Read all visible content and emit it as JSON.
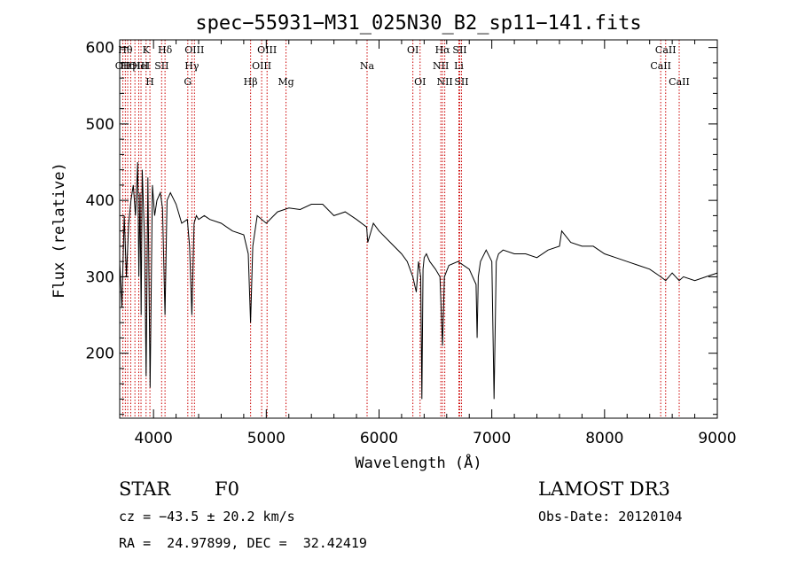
{
  "chart_data": {
    "type": "line",
    "title": "spec−55931−M31_025N30_B2_sp11−141.fits",
    "xlabel": "Wavelength (Å)",
    "ylabel": "Flux (relative)",
    "xlim": [
      3700,
      9000
    ],
    "ylim": [
      115,
      610
    ],
    "xticks": [
      4000,
      5000,
      6000,
      7000,
      8000,
      9000
    ],
    "yticks": [
      200,
      300,
      400,
      500,
      600
    ],
    "grid": false,
    "series": [
      {
        "color": "#000000",
        "x": [
          3700,
          3720,
          3740,
          3760,
          3780,
          3800,
          3820,
          3840,
          3860,
          3870,
          3880,
          3890,
          3900,
          3920,
          3934,
          3950,
          3970,
          3990,
          4010,
          4030,
          4060,
          4080,
          4102,
          4120,
          4150,
          4200,
          4250,
          4300,
          4320,
          4340,
          4360,
          4380,
          4400,
          4450,
          4500,
          4600,
          4700,
          4800,
          4840,
          4861,
          4880,
          4920,
          5000,
          5100,
          5200,
          5300,
          5400,
          5500,
          5600,
          5700,
          5800,
          5890,
          5900,
          5950,
          6000,
          6100,
          6200,
          6250,
          6300,
          6330,
          6350,
          6370,
          6380,
          6390,
          6400,
          6420,
          6450,
          6500,
          6540,
          6563,
          6580,
          6620,
          6700,
          6800,
          6860,
          6870,
          6880,
          6900,
          6950,
          7000,
          7020,
          7040,
          7060,
          7100,
          7200,
          7300,
          7400,
          7500,
          7600,
          7620,
          7700,
          7800,
          7900,
          8000,
          8100,
          8200,
          8300,
          8400,
          8498,
          8542,
          8600,
          8662,
          8700,
          8800,
          8900,
          9000
        ],
        "y": [
          320,
          260,
          380,
          300,
          370,
          400,
          420,
          380,
          450,
          300,
          410,
          250,
          440,
          350,
          170,
          430,
          155,
          420,
          380,
          400,
          410,
          390,
          250,
          400,
          410,
          395,
          370,
          375,
          340,
          250,
          370,
          380,
          375,
          380,
          375,
          370,
          360,
          355,
          330,
          240,
          340,
          380,
          370,
          385,
          390,
          388,
          395,
          395,
          380,
          385,
          375,
          365,
          345,
          370,
          360,
          345,
          330,
          320,
          300,
          280,
          320,
          300,
          140,
          310,
          325,
          330,
          320,
          310,
          300,
          210,
          300,
          315,
          320,
          310,
          290,
          220,
          300,
          320,
          335,
          320,
          140,
          320,
          330,
          335,
          330,
          330,
          325,
          335,
          340,
          360,
          345,
          340,
          340,
          330,
          325,
          320,
          315,
          310,
          300,
          295,
          305,
          295,
          300,
          295,
          300,
          305
        ]
      }
    ],
    "line_color": "#cc0000",
    "lines": [
      {
        "x": 3728,
        "label": "OII",
        "row": 1
      },
      {
        "x": 3750,
        "label": "Hθ",
        "row": 0
      },
      {
        "x": 3771,
        "label": "Hη",
        "row": 1
      },
      {
        "x": 3798,
        "label": "",
        "row": 0
      },
      {
        "x": 3835,
        "label": "",
        "row": 1
      },
      {
        "x": 3869,
        "label": "OIII",
        "row": 1
      },
      {
        "x": 3889,
        "label": "HeI",
        "row": 1
      },
      {
        "x": 3934,
        "label": "K",
        "row": 0
      },
      {
        "x": 3968,
        "label": "H",
        "row": 2
      },
      {
        "x": 4072,
        "label": "SII",
        "row": 1
      },
      {
        "x": 4102,
        "label": "Hδ",
        "row": 0
      },
      {
        "x": 4304,
        "label": "G",
        "row": 2
      },
      {
        "x": 4340,
        "label": "Hγ",
        "row": 1
      },
      {
        "x": 4363,
        "label": "OIII",
        "row": 0
      },
      {
        "x": 4861,
        "label": "Hβ",
        "row": 2
      },
      {
        "x": 4959,
        "label": "OIII",
        "row": 1
      },
      {
        "x": 5007,
        "label": "OIII",
        "row": 0
      },
      {
        "x": 5175,
        "label": "Mg",
        "row": 2
      },
      {
        "x": 5894,
        "label": "Na",
        "row": 1
      },
      {
        "x": 6300,
        "label": "OI",
        "row": 0
      },
      {
        "x": 6364,
        "label": "OI",
        "row": 2
      },
      {
        "x": 6548,
        "label": "NII",
        "row": 1
      },
      {
        "x": 6563,
        "label": "Hα",
        "row": 0
      },
      {
        "x": 6583,
        "label": "NII",
        "row": 2
      },
      {
        "x": 6708,
        "label": "Li",
        "row": 1
      },
      {
        "x": 6716,
        "label": "SII",
        "row": 0
      },
      {
        "x": 6731,
        "label": "SII",
        "row": 2
      },
      {
        "x": 8498,
        "label": "CaII",
        "row": 1
      },
      {
        "x": 8542,
        "label": "CaII",
        "row": 0
      },
      {
        "x": 8662,
        "label": "CaII",
        "row": 2
      }
    ]
  },
  "info": {
    "object_class": "STAR",
    "subclass": "F0",
    "survey": "LAMOST DR3",
    "redshift": "cz = −43.5 ± 20.2 km/s",
    "obs_date": "Obs-Date: 20120104",
    "coords": "RA =  24.97899, DEC =  32.42419"
  }
}
